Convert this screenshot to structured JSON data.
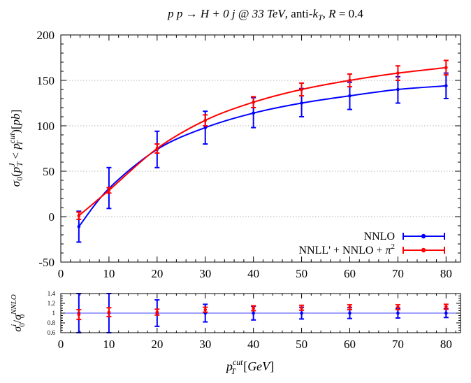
{
  "chart_data": [
    {
      "type": "line",
      "title": "pp → H + 0j @ 33 TeV, anti-k_T, R = 0.4",
      "title_parts": {
        "process": "p p → H + 0 j @ 33 ",
        "energy_unit": "TeV",
        "algo": ", anti-",
        "k": "k",
        "k_sub": "T",
        "radius": ", ",
        "r_sym": "R",
        "r_val": " = 0.4"
      },
      "ylabel": "σ_0(p_T^J < p_T^cut)[pb]",
      "ylabel_parts": {
        "sigma": "σ",
        "zero": "0",
        "open": "(",
        "p": "p",
        "T": "T",
        "J": "J",
        "lt": " < ",
        "cut": "cut",
        "close": ")[",
        "pb": "pb",
        "end": "]"
      },
      "xlim": [
        0,
        83
      ],
      "ylim": [
        -50,
        200
      ],
      "yticks": [
        "-50",
        "0",
        "50",
        "100",
        "150",
        "200"
      ],
      "xticks": [
        "0",
        "10",
        "20",
        "30",
        "40",
        "50",
        "60",
        "70",
        "80"
      ],
      "grid": "horizontal dotted at major y ticks",
      "legend_position": "bottom-right",
      "series": [
        {
          "name": "NNLO",
          "color": "#0000ff",
          "x": [
            3.75,
            10,
            20,
            30,
            40,
            50,
            60,
            70,
            80
          ],
          "y": [
            -11,
            31,
            74,
            98,
            114,
            125,
            133,
            140,
            144
          ],
          "err_up": [
            17,
            23,
            20,
            18,
            17,
            16,
            15,
            14,
            14
          ],
          "err_down": [
            17,
            22,
            20,
            18,
            16,
            15,
            15,
            15,
            14
          ]
        },
        {
          "name": "NNLL' + NNLO + π²",
          "legend_parts": {
            "main": "NNLL' + NNLO + ",
            "pi": "π",
            "sq": "2"
          },
          "color": "#ff0000",
          "x": [
            3.75,
            10,
            20,
            30,
            40,
            50,
            60,
            70,
            80
          ],
          "y": [
            1,
            29,
            75,
            106,
            126,
            140,
            150,
            158,
            164
          ],
          "err_up": [
            4,
            3,
            5,
            6,
            6,
            7,
            7,
            8,
            8
          ],
          "err_down": [
            4,
            3,
            5,
            6,
            6,
            7,
            7,
            8,
            8
          ]
        }
      ]
    },
    {
      "type": "scatter",
      "ylabel": "σ_0^i / σ_0^NNLO",
      "ylabel_parts": {
        "sigma": "σ",
        "i": "i",
        "zero": "0",
        "slash": "/",
        "nnlo": "NNLO"
      },
      "xlabel": "p_T^cut [GeV]",
      "xlabel_parts": {
        "p": "p",
        "T": "T",
        "cut": "cut",
        "open": "[",
        "gev": "GeV",
        "close": "]"
      },
      "xlim": [
        0,
        83
      ],
      "ylim": [
        0.6,
        1.4
      ],
      "yticks": [
        "0.6",
        "0.8",
        "1",
        "1.2",
        "1.4"
      ],
      "xticks": [
        "0",
        "10",
        "20",
        "30",
        "40",
        "50",
        "60",
        "70",
        "80"
      ],
      "reference_line": 1,
      "series": [
        {
          "name": "NNLO",
          "color": "#0000ff",
          "x": [
            3.75,
            10,
            20,
            30,
            40,
            50,
            60,
            70,
            80
          ],
          "y": [
            1.0,
            1.0,
            1.0,
            1.0,
            1.0,
            1.0,
            1.0,
            1.0,
            1.0
          ],
          "err": [
            0.4,
            0.4,
            0.27,
            0.18,
            0.14,
            0.12,
            0.11,
            0.1,
            0.09
          ]
        },
        {
          "name": "NNLL' + NNLO + π²",
          "color": "#ff0000",
          "x": [
            3.75,
            10,
            20,
            30,
            40,
            50,
            60,
            70,
            80
          ],
          "y": [
            0.97,
            1.02,
            1.02,
            1.07,
            1.1,
            1.11,
            1.12,
            1.12,
            1.13
          ],
          "err": [
            0.1,
            0.09,
            0.06,
            0.05,
            0.05,
            0.05,
            0.05,
            0.05,
            0.05
          ]
        }
      ]
    }
  ]
}
